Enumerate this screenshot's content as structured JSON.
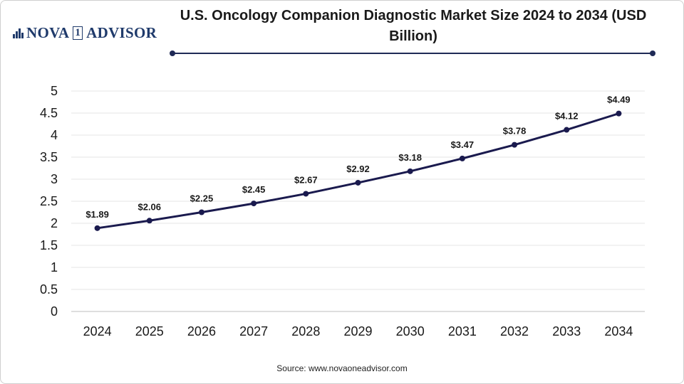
{
  "header": {
    "logo": {
      "part1": "NOVA",
      "part2": "1",
      "part3": "ADVISOR"
    },
    "title": "U.S. Oncology Companion Diagnostic Market Size 2024 to 2034 (USD Billion)"
  },
  "colors": {
    "line": "#1a1a4e",
    "accent": "#1f2a56",
    "grid": "#e6e6e6",
    "text": "#1a1a1a"
  },
  "chart_data": {
    "type": "line",
    "title": "U.S. Oncology Companion Diagnostic Market Size 2024 to 2034 (USD Billion)",
    "xlabel": "",
    "ylabel": "",
    "categories": [
      "2024",
      "2025",
      "2026",
      "2027",
      "2028",
      "2029",
      "2030",
      "2031",
      "2032",
      "2033",
      "2034"
    ],
    "values": [
      1.89,
      2.06,
      2.25,
      2.45,
      2.67,
      2.92,
      3.18,
      3.47,
      3.78,
      4.12,
      4.49
    ],
    "labels": [
      "$1.89",
      "$2.06",
      "$2.25",
      "$2.45",
      "$2.67",
      "$2.92",
      "$3.18",
      "$3.47",
      "$3.78",
      "$4.12",
      "$4.49"
    ],
    "ylim": [
      0,
      5
    ],
    "yticks": [
      "0",
      "0.5",
      "1",
      "1.5",
      "2",
      "2.5",
      "3",
      "3.5",
      "4",
      "4.5",
      "5"
    ],
    "grid": true
  },
  "footer": {
    "source": "Source: www.novaoneadvisor.com"
  }
}
